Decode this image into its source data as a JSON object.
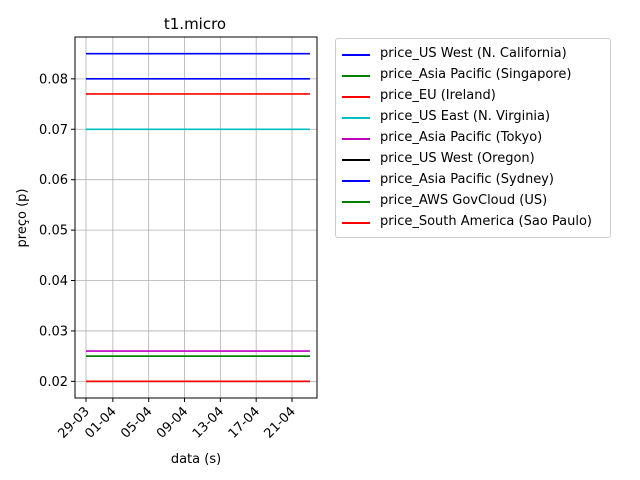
{
  "chart_data": {
    "type": "line",
    "title": "t1.micro",
    "xlabel": "data (s)",
    "ylabel": "preço (p)",
    "x_tick_labels": [
      "29-03",
      "01-04",
      "05-04",
      "09-04",
      "13-04",
      "17-04",
      "21-04"
    ],
    "x_tick_dates": [
      "2016-03-29",
      "2016-04-01",
      "2016-04-05",
      "2016-04-09",
      "2016-04-13",
      "2016-04-17",
      "2016-04-21"
    ],
    "x_range": [
      "2016-03-29",
      "2016-04-23"
    ],
    "y_ticks": [
      0.02,
      0.03,
      0.04,
      0.05,
      0.06,
      0.07,
      0.08
    ],
    "ylim": [
      0.0167,
      0.0883
    ],
    "grid": true,
    "legend_position": "outside-right",
    "series": [
      {
        "name": "price_US West (N. California)",
        "color": "#0000ff",
        "x": [
          "2016-03-29",
          "2016-04-23"
        ],
        "values": [
          0.085,
          0.085
        ]
      },
      {
        "name": "price_Asia Pacific (Singapore)",
        "color": "#008000",
        "x": [
          "2016-03-29",
          "2016-04-23"
        ],
        "values": [
          0.025,
          0.025
        ]
      },
      {
        "name": "price_EU (Ireland)",
        "color": "#ff0000",
        "x": [
          "2016-03-29",
          "2016-04-23"
        ],
        "values": [
          0.077,
          0.077
        ]
      },
      {
        "name": "price_US East (N. Virginia)",
        "color": "#00bfbf",
        "x": [
          "2016-03-29",
          "2016-04-23"
        ],
        "values": [
          0.07,
          0.07
        ]
      },
      {
        "name": "price_Asia Pacific (Tokyo)",
        "color": "#bf00bf",
        "x": [
          "2016-03-29",
          "2016-04-23"
        ],
        "values": [
          0.026,
          0.026
        ]
      },
      {
        "name": "price_US West (Oregon)",
        "color": "#000000",
        "x": [
          "2016-03-29",
          "2016-04-23"
        ],
        "values": [
          0.02,
          0.02
        ]
      },
      {
        "name": "price_Asia Pacific (Sydney)",
        "color": "#0000ff",
        "x": [
          "2016-03-29",
          "2016-04-23"
        ],
        "values": [
          0.08,
          0.08
        ]
      },
      {
        "name": "price_AWS GovCloud (US)",
        "color": "#008000",
        "x": [
          "2016-03-29",
          "2016-04-23"
        ],
        "values": [
          0.025,
          0.025
        ]
      },
      {
        "name": "price_South America (Sao Paulo)",
        "color": "#ff0000",
        "x": [
          "2016-03-29",
          "2016-04-23"
        ],
        "values": [
          0.02,
          0.02
        ]
      }
    ]
  }
}
